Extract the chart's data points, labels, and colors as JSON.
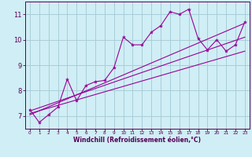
{
  "bg_color": "#d0eef5",
  "grid_color": "#a8cdd8",
  "line_color": "#990099",
  "marker_color": "#990099",
  "xlabel": "Windchill (Refroidissement éolien,°C)",
  "xlabel_color": "#550055",
  "tick_color": "#550055",
  "xlim": [
    -0.5,
    23.5
  ],
  "ylim": [
    6.5,
    11.5
  ],
  "yticks": [
    7,
    8,
    9,
    10,
    11
  ],
  "xticks": [
    0,
    1,
    2,
    3,
    4,
    5,
    6,
    7,
    8,
    9,
    10,
    11,
    12,
    13,
    14,
    15,
    16,
    17,
    18,
    19,
    20,
    21,
    22,
    23
  ],
  "main_x": [
    0,
    1,
    2,
    3,
    4,
    5,
    6,
    7,
    8,
    9,
    10,
    11,
    12,
    13,
    14,
    15,
    16,
    17,
    18,
    19,
    20,
    21,
    22,
    23
  ],
  "main_y": [
    7.25,
    6.75,
    7.05,
    7.35,
    8.45,
    7.6,
    8.2,
    8.35,
    8.4,
    8.9,
    10.1,
    9.8,
    9.8,
    10.3,
    10.55,
    11.1,
    11.0,
    11.2,
    10.05,
    9.6,
    10.0,
    9.55,
    9.8,
    10.7
  ],
  "line1_x": [
    0,
    23
  ],
  "line1_y": [
    7.1,
    9.55
  ],
  "line2_x": [
    0,
    23
  ],
  "line2_y": [
    7.2,
    10.1
  ],
  "line3_x": [
    0,
    23
  ],
  "line3_y": [
    7.05,
    10.65
  ]
}
